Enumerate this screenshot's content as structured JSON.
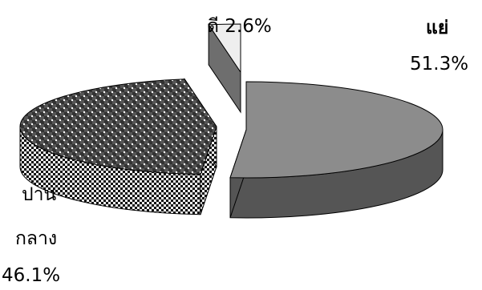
{
  "chart_data": {
    "type": "pie",
    "style": "3d-exploded",
    "title": "",
    "slices": [
      {
        "label": "แย่",
        "value": 51.3,
        "display": "51.3%",
        "fill": "#8c8c8c",
        "side": "#555555"
      },
      {
        "label": "ปานกลาง",
        "value": 46.1,
        "display": "46.1%",
        "fill": "checker-dotted",
        "side": "checker-dense"
      },
      {
        "label": "ดี",
        "value": 2.6,
        "display": "2.6%",
        "fill": "#eeeeee",
        "side": "#6e6e6e"
      }
    ],
    "legend": "none",
    "labels": {
      "bad_name": "แย่",
      "bad_value": "51.3%",
      "good": "ดี 2.6%",
      "mid_line1": "ปาน",
      "mid_line2": "กลาง",
      "mid_value": "46.1%"
    }
  }
}
